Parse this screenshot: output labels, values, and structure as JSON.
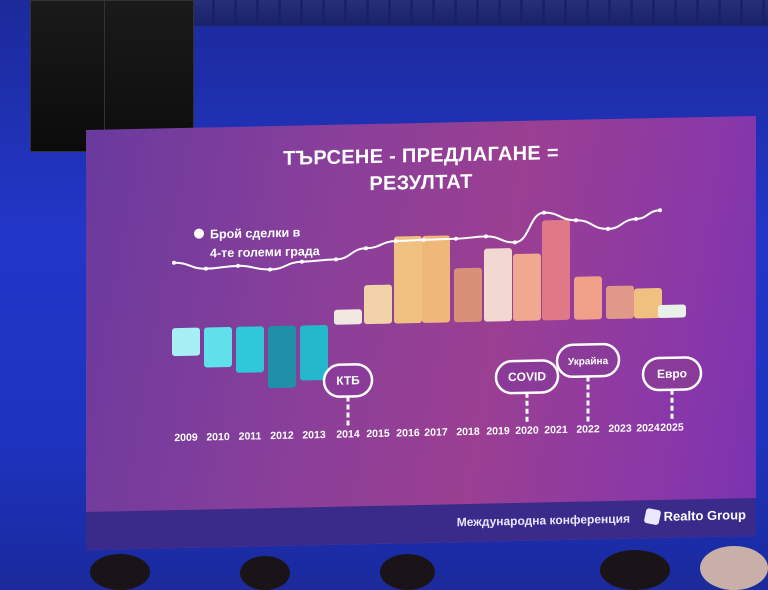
{
  "slide": {
    "title_line1": "ТЪРСЕНЕ - ПРЕДЛАГАНЕ =",
    "title_line2": "РЕЗУЛТАТ",
    "footer_text": "Международна конференция",
    "brand": "Realto Group"
  },
  "chart_data": {
    "type": "bar",
    "title": "ТЪРСЕНЕ - ПРЕДЛАГАНЕ = РЕЗУЛТАТ",
    "categories": [
      "2009",
      "2010",
      "2011",
      "2012",
      "2013",
      "2014",
      "2015",
      "2016",
      "2017",
      "2018",
      "2019",
      "2020",
      "2021",
      "2022",
      "2023",
      "2024",
      "2025"
    ],
    "bar_values": [
      -28,
      -40,
      -46,
      -62,
      -55,
      15,
      39,
      87,
      87,
      54,
      73,
      67,
      100,
      43,
      33,
      30,
      13
    ],
    "bar_colors": [
      "#a8eef5",
      "#5fe0ea",
      "#2ec8d8",
      "#1e90a8",
      "#25b8cc",
      "#f2e8e0",
      "#f2d2a8",
      "#f0c080",
      "#f0b878",
      "#d89078",
      "#f2d8d0",
      "#f0a890",
      "#e07888",
      "#f0a088",
      "#e09888",
      "#f0c080",
      "#e8f0e8"
    ],
    "line_series": {
      "name": "Брой сделки в 4-те големи града",
      "legend_line1": "Брой сделки в",
      "legend_line2": "4-те големи града",
      "values": [
        28,
        16,
        20,
        12,
        25,
        28,
        47,
        59,
        60,
        61,
        64,
        52,
        105,
        90,
        73,
        90,
        105
      ]
    },
    "annotations": [
      {
        "label": "КТБ",
        "year": "2014"
      },
      {
        "label": "COVID",
        "year": "2020"
      },
      {
        "label": "Украйна",
        "year": "2022"
      },
      {
        "label": "Евро",
        "year": "2025"
      }
    ],
    "xlabel": "",
    "ylabel": "",
    "grid": false,
    "legend": "left"
  }
}
